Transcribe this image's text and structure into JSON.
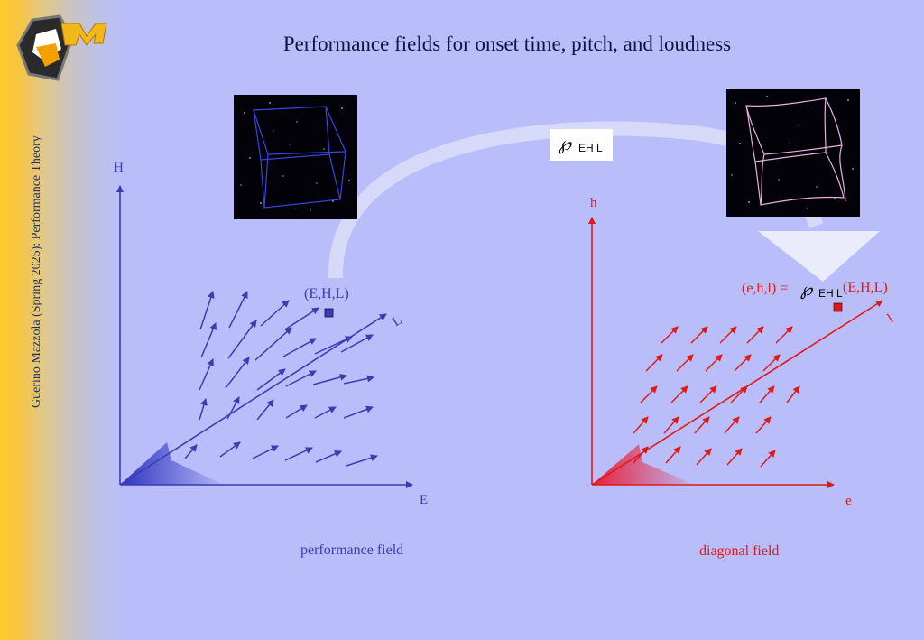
{
  "slide": {
    "title": "Performance fields for onset time, pitch, and loudness",
    "footer_vertical": "Guerino Mazzola (Spring 2025): Performance Theory"
  },
  "map_symbol": {
    "glyph": "℘",
    "subscript": "EH L"
  },
  "left_field": {
    "axis_vertical": "H",
    "axis_horizontal": "E",
    "axis_diagonal": "L",
    "point_label": "(E,H,L)",
    "caption": "performance field",
    "color": "#3a3cb0"
  },
  "right_field": {
    "axis_vertical": "h",
    "axis_horizontal": "e",
    "axis_diagonal": "l",
    "formula_prefix": "(e,h,l) =",
    "formula_glyph": "℘",
    "formula_subscript": "EH L",
    "formula_suffix": "(E,H,L)",
    "caption": "diagonal field",
    "color": "#e01818"
  },
  "icons": [
    "mazzola-logo-icon",
    "cube-icon",
    "deformed-cube-icon",
    "arrow-icon"
  ]
}
